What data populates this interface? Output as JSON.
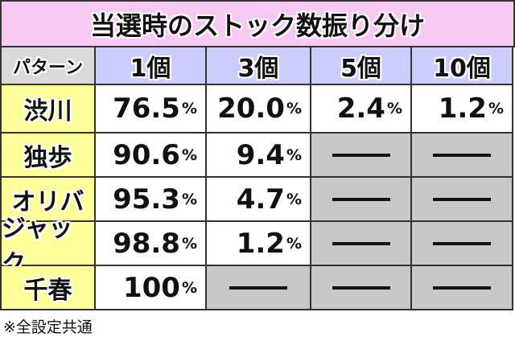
{
  "title": "当選時のストック数振り分け",
  "table": {
    "header": [
      "パターン",
      "1個",
      "3個",
      "5個",
      "10個"
    ],
    "rows": [
      [
        "渋川",
        "76.5%",
        "20.0%",
        "2.4%",
        "1.2%"
      ],
      [
        "独歩",
        "90.6%",
        "9.4%",
        null,
        null
      ],
      [
        "オリバ",
        "95.3%",
        "4.7%",
        null,
        null
      ],
      [
        "ジャック",
        "98.8%",
        "1.2%",
        null,
        null
      ],
      [
        "千春",
        "100%",
        null,
        null,
        null
      ]
    ]
  },
  "footnote": "※全設定共通"
}
